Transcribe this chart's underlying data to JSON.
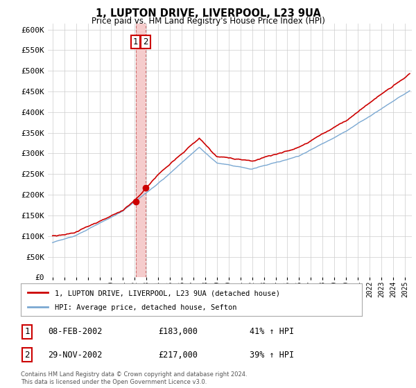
{
  "title": "1, LUPTON DRIVE, LIVERPOOL, L23 9UA",
  "subtitle": "Price paid vs. HM Land Registry's House Price Index (HPI)",
  "ylabel_ticks": [
    "£0",
    "£50K",
    "£100K",
    "£150K",
    "£200K",
    "£250K",
    "£300K",
    "£350K",
    "£400K",
    "£450K",
    "£500K",
    "£550K",
    "£600K"
  ],
  "ytick_values": [
    0,
    50000,
    100000,
    150000,
    200000,
    250000,
    300000,
    350000,
    400000,
    450000,
    500000,
    550000,
    600000
  ],
  "ylim": [
    0,
    615000
  ],
  "legend_label_red": "1, LUPTON DRIVE, LIVERPOOL, L23 9UA (detached house)",
  "legend_label_blue": "HPI: Average price, detached house, Sefton",
  "red_color": "#cc0000",
  "blue_color": "#7aa8d2",
  "vband_color": "#f5cccc",
  "transaction1_date": "08-FEB-2002",
  "transaction1_price": "£183,000",
  "transaction1_hpi": "41% ↑ HPI",
  "transaction1_t": 2002.083,
  "transaction1_price_val": 183000,
  "transaction2_date": "29-NOV-2002",
  "transaction2_price": "£217,000",
  "transaction2_hpi": "39% ↑ HPI",
  "transaction2_t": 2002.917,
  "transaction2_price_val": 217000,
  "footer": "Contains HM Land Registry data © Crown copyright and database right 2024.\nThis data is licensed under the Open Government Licence v3.0.",
  "bg_color": "#ffffff",
  "grid_color": "#cccccc"
}
